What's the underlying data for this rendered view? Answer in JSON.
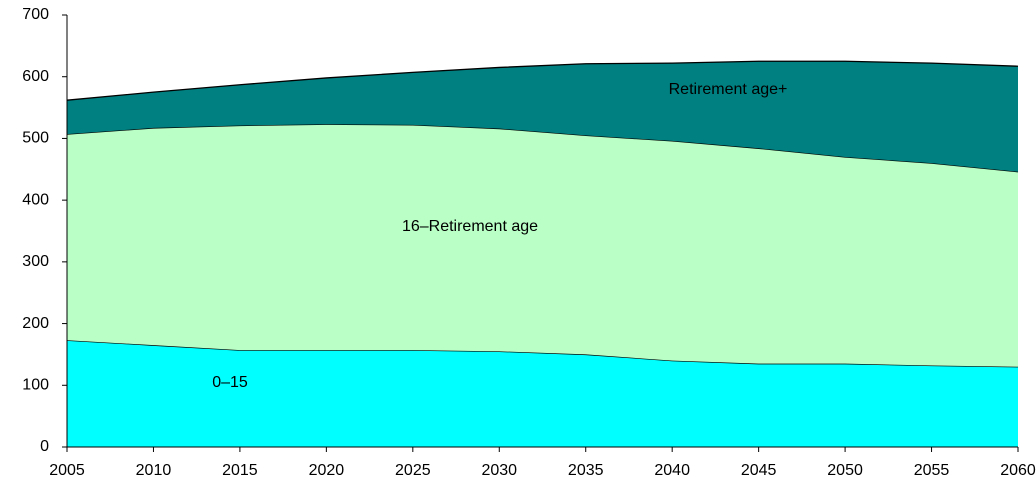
{
  "chart_data": {
    "type": "stacked-area",
    "x": [
      2005,
      2010,
      2015,
      2020,
      2025,
      2030,
      2035,
      2040,
      2045,
      2050,
      2055,
      2060
    ],
    "series": [
      {
        "name": "0–15",
        "color": "#00ffff",
        "values": [
          173,
          165,
          157,
          157,
          157,
          155,
          150,
          140,
          135,
          135,
          132,
          130
        ]
      },
      {
        "name": "16–Retirement age",
        "color": "#b9ffc6",
        "values": [
          334,
          352,
          364,
          366,
          365,
          361,
          355,
          356,
          349,
          335,
          328,
          316
        ]
      },
      {
        "name": "Retirement age+",
        "color": "#008080",
        "values": [
          55,
          58,
          66,
          75,
          85,
          99,
          116,
          126,
          141,
          155,
          162,
          171
        ]
      }
    ],
    "xlim": [
      2005,
      2060
    ],
    "xticks": [
      2005,
      2010,
      2015,
      2020,
      2025,
      2030,
      2035,
      2040,
      2045,
      2050,
      2055,
      2060
    ],
    "ylim": [
      0,
      700
    ],
    "yticks": [
      0,
      100,
      200,
      300,
      400,
      500,
      600,
      700
    ]
  }
}
